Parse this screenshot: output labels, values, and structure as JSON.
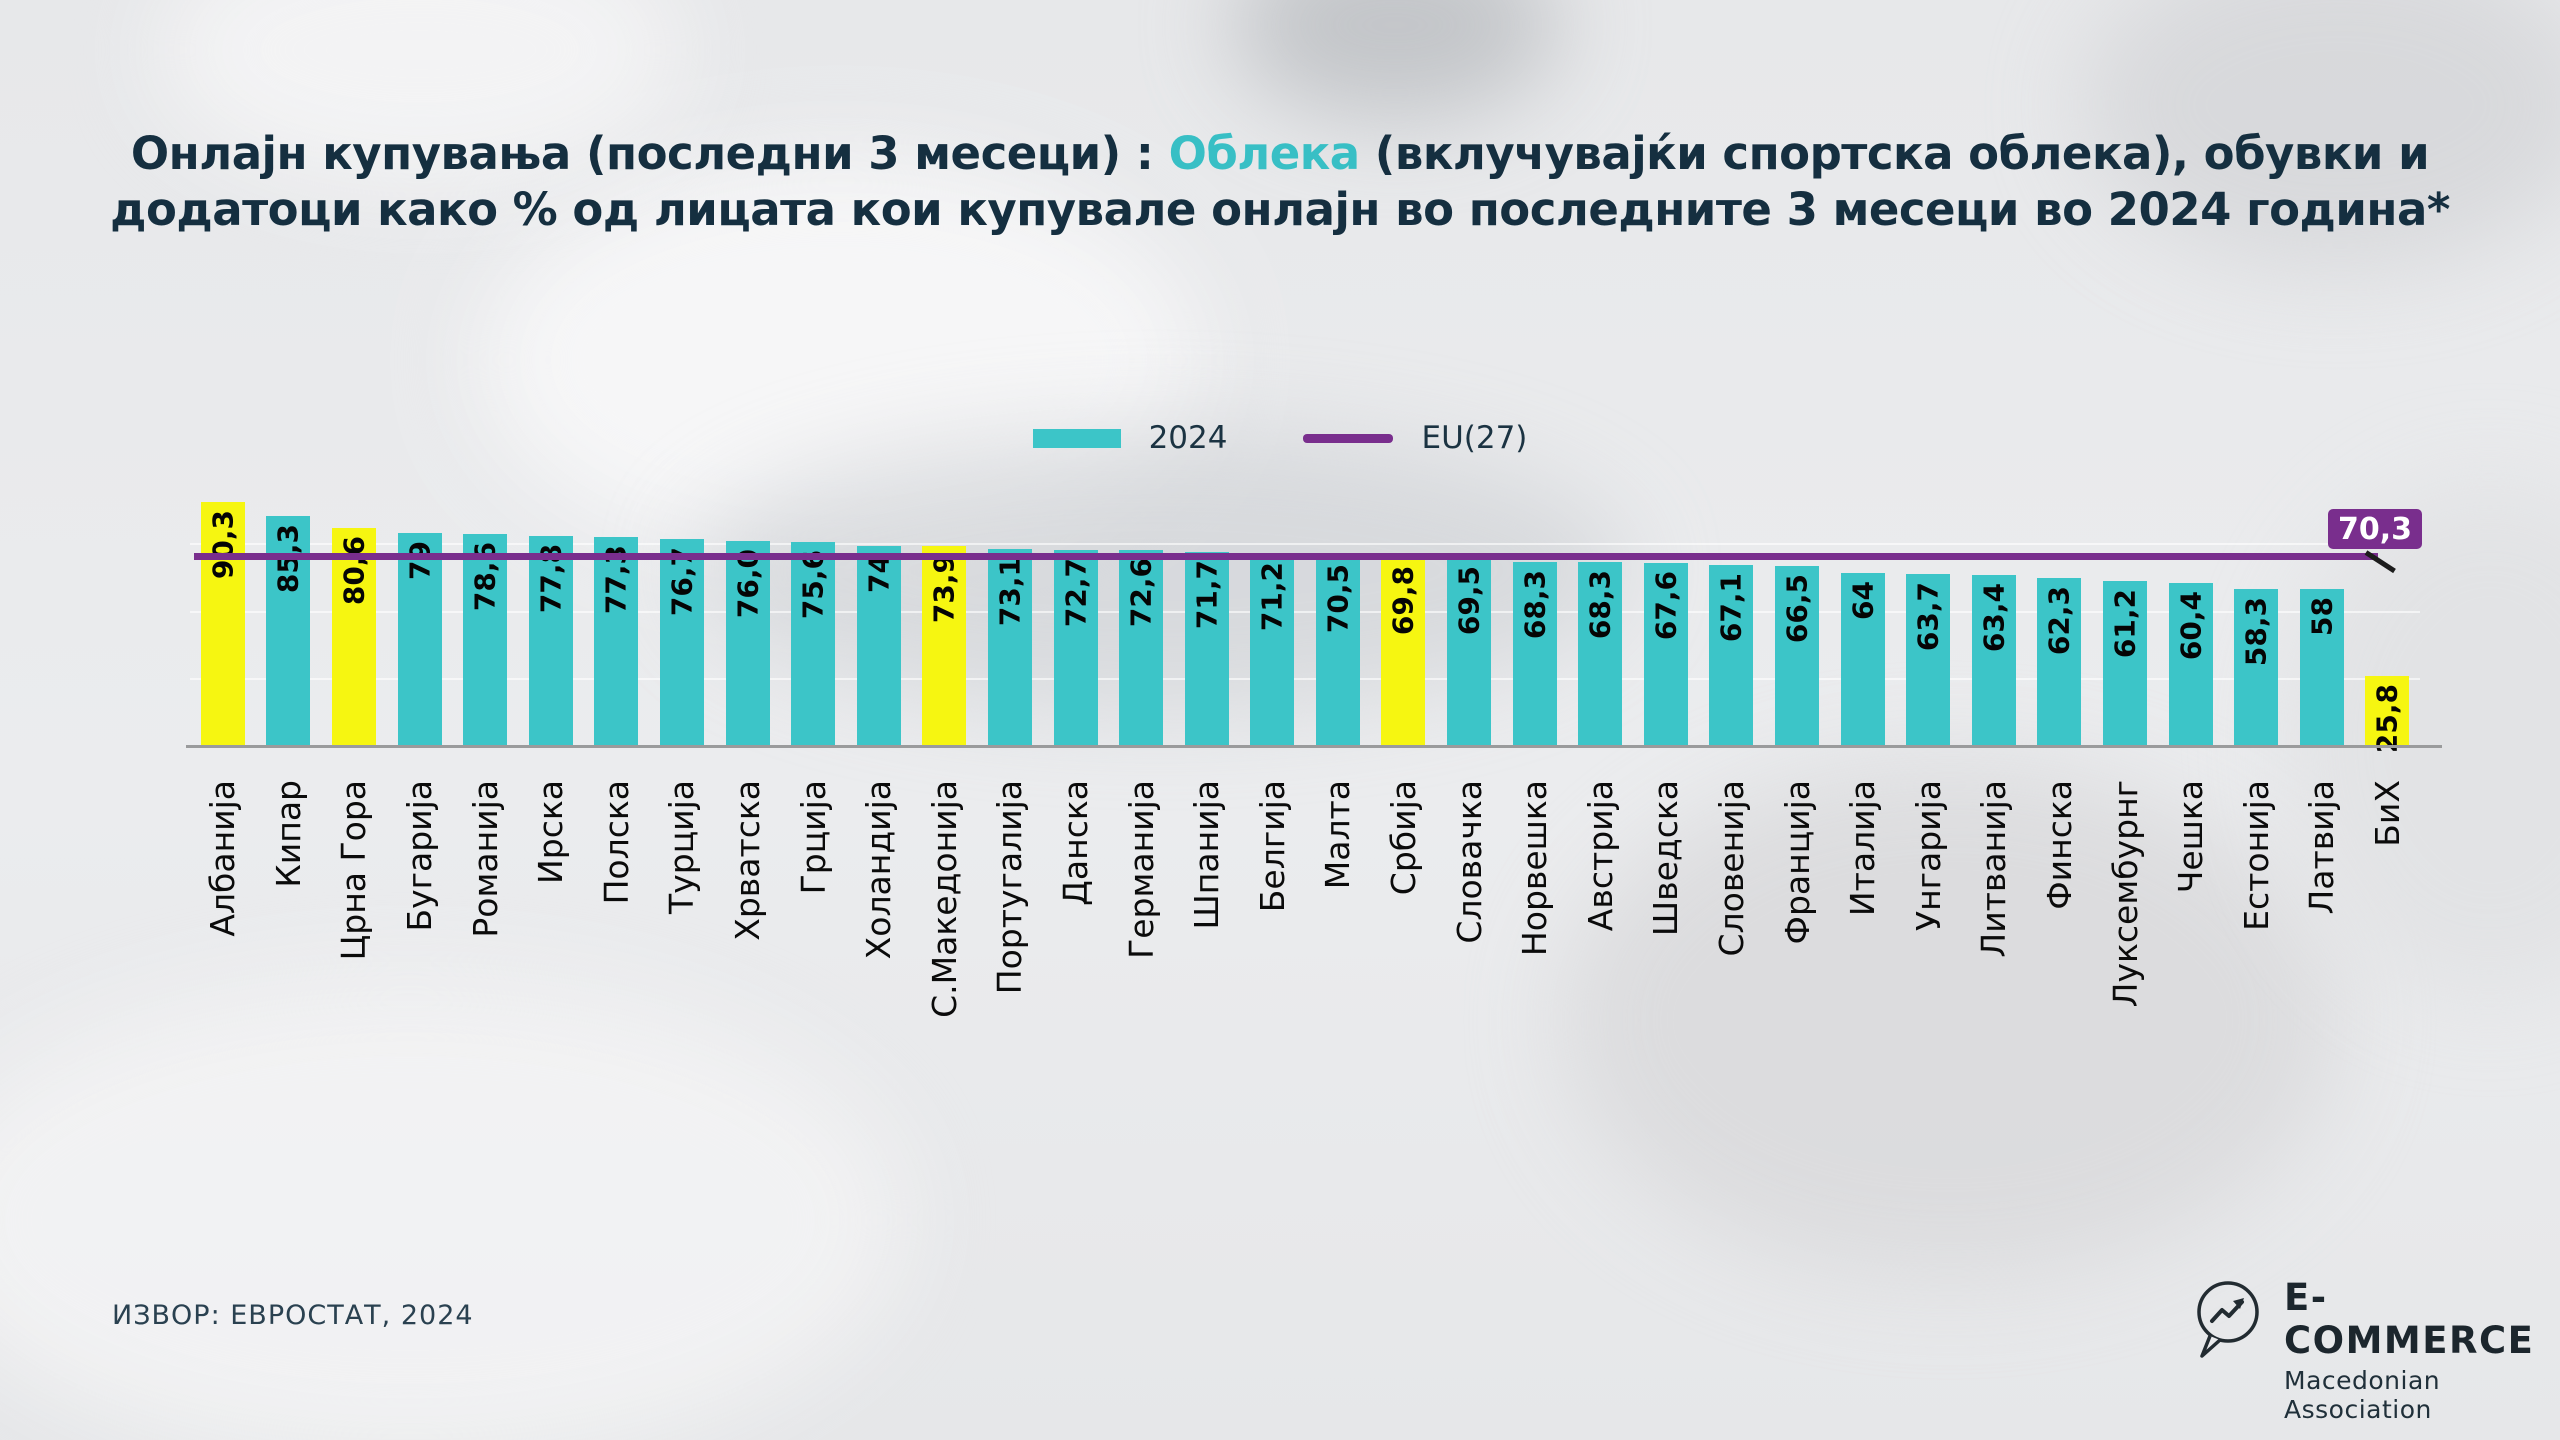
{
  "title": {
    "pre": "Онлајн купувања (последни 3 месеци) : ",
    "highlight": "Облека",
    "post": " (вклучувајќи спортска облека), обувки и",
    "line2": "додатоци како % од лицата кои купувале онлајн во последните 3 месеци во 2024 година*"
  },
  "legend": {
    "series_label": "2024",
    "line_label": "EU(27)"
  },
  "chart_data": {
    "type": "bar",
    "title": "Онлајн купувања (последни 3 месеци) : Облека (вклучувајќи спортска облека), обувки и додатоци како % од лицата кои купувале онлајн во последните 3 месеци во 2024 година*",
    "series_name": "2024",
    "categories": [
      "Албанија",
      "Кипар",
      "Црна Гора",
      "Бугарија",
      "Романија",
      "Ирска",
      "Полска",
      "Турција",
      "Хрватска",
      "Грција",
      "Холандија",
      "С.Македонија",
      "Португалија",
      "Данска",
      "Германија",
      "Шпанија",
      "Белгија",
      "Малта",
      "Србија",
      "Словачка",
      "Норвешка",
      "Австрија",
      "Шведска",
      "Словенија",
      "Франција",
      "Италија",
      "Унгарија",
      "Литванија",
      "Финска",
      "Луксембурнг",
      "Чешка",
      "Естонија",
      "Латвија",
      "БиХ"
    ],
    "values": [
      90.3,
      85.3,
      80.6,
      79,
      78.6,
      77.8,
      77.3,
      76.7,
      76.0,
      75.6,
      74,
      73.9,
      73.1,
      72.7,
      72.6,
      71.7,
      71.2,
      70.5,
      69.8,
      69.5,
      68.3,
      68.3,
      67.6,
      67.1,
      66.5,
      64,
      63.7,
      63.4,
      62.3,
      61.2,
      60.4,
      58.3,
      58,
      25.8
    ],
    "value_labels": [
      "90,3",
      "85,3",
      "80,6",
      "79",
      "78,6",
      "77,8",
      "77,3",
      "76,7",
      "76,0",
      "75,6",
      "74",
      "73,9",
      "73,1",
      "72,7",
      "72,6",
      "71,7",
      "71,2",
      "70,5",
      "69,8",
      "69,5",
      "68,3",
      "68,3",
      "67,6",
      "67,1",
      "66,5",
      "64",
      "63,7",
      "63,4",
      "62,3",
      "61,2",
      "60,4",
      "58,3",
      "58",
      "25,8"
    ],
    "highlight_indices": [
      0,
      2,
      11,
      18,
      33
    ],
    "highlighted_categories": [
      "Албанија",
      "Црна Гора",
      "С.Македонија",
      "Србија",
      "БиХ"
    ],
    "reference_line": {
      "name": "EU(27)",
      "value": 70.3,
      "value_label": "70,3"
    },
    "ylim": [
      0,
      100
    ],
    "grid": "faint horizontal lines",
    "legend_position": "top-center",
    "colors": {
      "bar": "#3cc5c8",
      "highlight_bar": "#f6f611",
      "reference_line": "#792e8d",
      "title_text": "#152f40",
      "title_highlight": "#38bfc5",
      "value_text": "#050505"
    }
  },
  "source": "ИЗВОР: ЕВРОСТАТ, 2024",
  "logo": {
    "name": "E-COMMERCE",
    "subtitle": "Macedonian Association"
  }
}
